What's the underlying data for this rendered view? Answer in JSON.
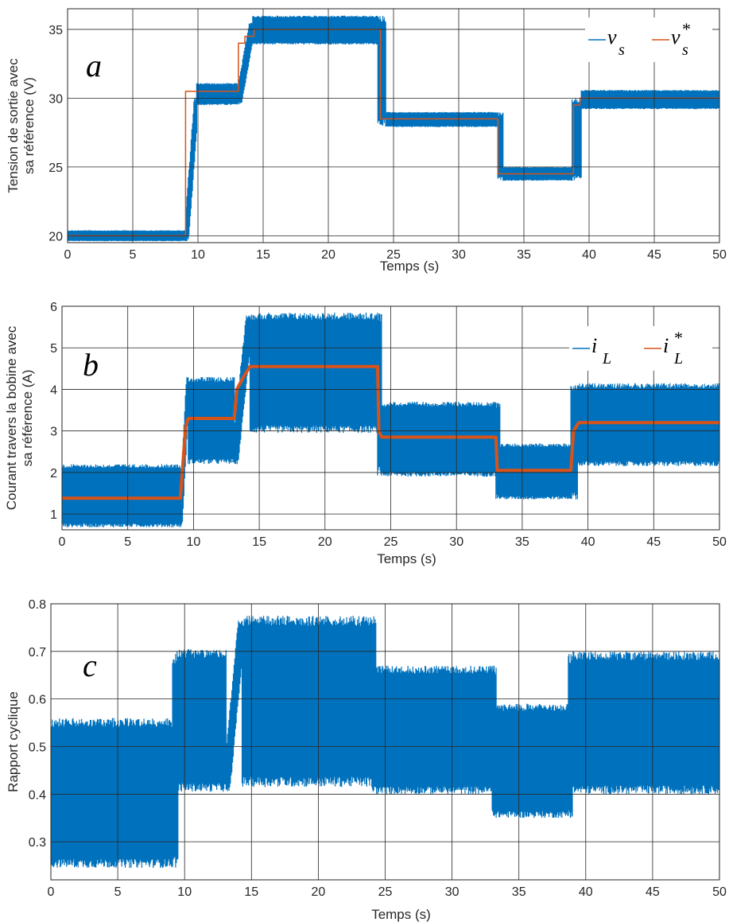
{
  "colors": {
    "measured": "#0072BD",
    "reference": "#D95319",
    "grid": "#262626",
    "axis": "#262626"
  },
  "chart_data": [
    {
      "type": "line",
      "panel_label": "a",
      "xlabel": "Temps (s)",
      "ylabel_lines": [
        "Tension de sortie avec",
        "sa référence (V)"
      ],
      "xlim": [
        0,
        50
      ],
      "ylim": [
        19.5,
        36.5
      ],
      "xticks": [
        0,
        5,
        10,
        15,
        20,
        25,
        30,
        35,
        40,
        45,
        50
      ],
      "yticks": [
        20,
        25,
        30,
        35
      ],
      "grid": true,
      "legend": {
        "placement": "top-right",
        "entries": [
          {
            "main": "v",
            "sub": "s",
            "star": ""
          },
          {
            "main": "v",
            "sub": "s",
            "star": "*"
          }
        ]
      },
      "series": [
        {
          "kind": "band",
          "color_key": "measured",
          "segments": [
            {
              "t0": 0,
              "t1": 9.1,
              "lo": 19.6,
              "hi": 20.4
            },
            {
              "t0": 9.1,
              "t1": 9.9,
              "lo": 19.6,
              "hi": 30.0,
              "ramp": true
            },
            {
              "t0": 9.9,
              "t1": 13.1,
              "lo": 29.5,
              "hi": 31.1
            },
            {
              "t0": 13.1,
              "t1": 14.2,
              "lo": 29.6,
              "hi": 35.5,
              "ramp": true
            },
            {
              "t0": 14.2,
              "t1": 23.8,
              "lo": 33.9,
              "hi": 36.0
            },
            {
              "t0": 23.8,
              "t1": 24.4,
              "lo": 28.0,
              "hi": 36.0
            },
            {
              "t0": 24.4,
              "t1": 33.0,
              "lo": 27.9,
              "hi": 29.0
            },
            {
              "t0": 33.0,
              "t1": 33.4,
              "lo": 24.0,
              "hi": 29.0
            },
            {
              "t0": 33.4,
              "t1": 38.7,
              "lo": 24.0,
              "hi": 25.0
            },
            {
              "t0": 38.7,
              "t1": 39.4,
              "lo": 24.0,
              "hi": 30.0
            },
            {
              "t0": 39.4,
              "t1": 50,
              "lo": 29.2,
              "hi": 30.6
            }
          ]
        },
        {
          "kind": "step",
          "color_key": "reference",
          "width": 1.5,
          "points": [
            [
              0,
              20
            ],
            [
              9.05,
              20
            ],
            [
              9.05,
              30.5
            ],
            [
              13.1,
              30.5
            ],
            [
              13.1,
              34.0
            ],
            [
              13.6,
              34.0
            ],
            [
              13.6,
              34.5
            ],
            [
              14.3,
              34.5
            ],
            [
              14.3,
              35.0
            ],
            [
              24.0,
              35.0
            ],
            [
              24.0,
              28.5
            ],
            [
              33.0,
              28.5
            ],
            [
              33.0,
              24.5
            ],
            [
              38.8,
              24.5
            ],
            [
              38.8,
              29.5
            ],
            [
              39.3,
              29.5
            ],
            [
              39.3,
              30.0
            ],
            [
              50,
              30.0
            ]
          ]
        }
      ]
    },
    {
      "type": "line",
      "panel_label": "b",
      "xlabel": "Temps (s)",
      "ylabel_lines": [
        "Courant travers la bobine avec",
        "sa référence (A)"
      ],
      "xlim": [
        0,
        50
      ],
      "ylim": [
        0.62,
        6.0
      ],
      "xticks": [
        0,
        5,
        10,
        15,
        20,
        25,
        30,
        35,
        40,
        45,
        50
      ],
      "yticks": [
        1,
        2,
        3,
        4,
        5,
        6
      ],
      "grid": true,
      "legend": {
        "placement": "top-right",
        "entries": [
          {
            "main": "i",
            "sub": "L",
            "star": ""
          },
          {
            "main": "i",
            "sub": "L",
            "star": "*"
          }
        ]
      },
      "series": [
        {
          "kind": "band",
          "color_key": "measured",
          "segments": [
            {
              "t0": 0,
              "t1": 9.0,
              "lo": 0.68,
              "hi": 2.2
            },
            {
              "t0": 9.0,
              "t1": 9.6,
              "lo": 0.68,
              "hi": 4.3,
              "ramp": true
            },
            {
              "t0": 9.6,
              "t1": 13.1,
              "lo": 2.2,
              "hi": 4.3
            },
            {
              "t0": 13.1,
              "t1": 14.3,
              "lo": 2.2,
              "hi": 5.8,
              "ramp": true
            },
            {
              "t0": 14.3,
              "t1": 24.0,
              "lo": 2.95,
              "hi": 5.85
            },
            {
              "t0": 24.0,
              "t1": 24.3,
              "lo": 1.9,
              "hi": 5.85
            },
            {
              "t0": 24.3,
              "t1": 33.0,
              "lo": 1.9,
              "hi": 3.7
            },
            {
              "t0": 33.0,
              "t1": 33.3,
              "lo": 1.35,
              "hi": 3.7
            },
            {
              "t0": 33.3,
              "t1": 38.7,
              "lo": 1.35,
              "hi": 2.7
            },
            {
              "t0": 38.7,
              "t1": 39.2,
              "lo": 1.35,
              "hi": 4.15
            },
            {
              "t0": 39.2,
              "t1": 50,
              "lo": 2.15,
              "hi": 4.15
            }
          ]
        },
        {
          "kind": "step",
          "color_key": "reference",
          "width": 4,
          "points": [
            [
              0,
              1.38
            ],
            [
              9.0,
              1.38
            ],
            [
              9.4,
              3.1
            ],
            [
              9.6,
              3.3
            ],
            [
              13.1,
              3.3
            ],
            [
              13.3,
              4.0
            ],
            [
              13.8,
              4.3
            ],
            [
              14.3,
              4.55
            ],
            [
              24.0,
              4.55
            ],
            [
              24.1,
              3.0
            ],
            [
              24.3,
              2.85
            ],
            [
              33.0,
              2.85
            ],
            [
              33.1,
              2.05
            ],
            [
              38.7,
              2.05
            ],
            [
              38.9,
              3.0
            ],
            [
              39.3,
              3.2
            ],
            [
              50,
              3.2
            ]
          ]
        }
      ]
    },
    {
      "type": "line",
      "panel_label": "c",
      "xlabel": "Temps (s)",
      "ylabel_lines": [
        "Rapport cyclique"
      ],
      "xlim": [
        0,
        50
      ],
      "ylim": [
        0.22,
        0.8
      ],
      "xticks": [
        0,
        5,
        10,
        15,
        20,
        25,
        30,
        35,
        40,
        45,
        50
      ],
      "yticks": [
        0.3,
        0.4,
        0.5,
        0.6,
        0.7,
        0.8
      ],
      "grid": true,
      "series": [
        {
          "kind": "band",
          "color_key": "measured",
          "segments": [
            {
              "t0": 0,
              "t1": 9.1,
              "lo": 0.245,
              "hi": 0.56
            },
            {
              "t0": 9.1,
              "t1": 9.5,
              "lo": 0.245,
              "hi": 0.7
            },
            {
              "t0": 9.5,
              "t1": 13.1,
              "lo": 0.405,
              "hi": 0.705
            },
            {
              "t0": 13.1,
              "t1": 14.3,
              "lo": 0.405,
              "hi": 0.765,
              "ramp": true
            },
            {
              "t0": 14.3,
              "t1": 24.0,
              "lo": 0.415,
              "hi": 0.775
            },
            {
              "t0": 24.0,
              "t1": 24.3,
              "lo": 0.4,
              "hi": 0.775
            },
            {
              "t0": 24.3,
              "t1": 33.0,
              "lo": 0.4,
              "hi": 0.67
            },
            {
              "t0": 33.0,
              "t1": 33.3,
              "lo": 0.35,
              "hi": 0.67
            },
            {
              "t0": 33.3,
              "t1": 38.7,
              "lo": 0.35,
              "hi": 0.59
            },
            {
              "t0": 38.7,
              "t1": 39.0,
              "lo": 0.35,
              "hi": 0.695
            },
            {
              "t0": 39.0,
              "t1": 50,
              "lo": 0.4,
              "hi": 0.7
            }
          ]
        }
      ]
    }
  ]
}
